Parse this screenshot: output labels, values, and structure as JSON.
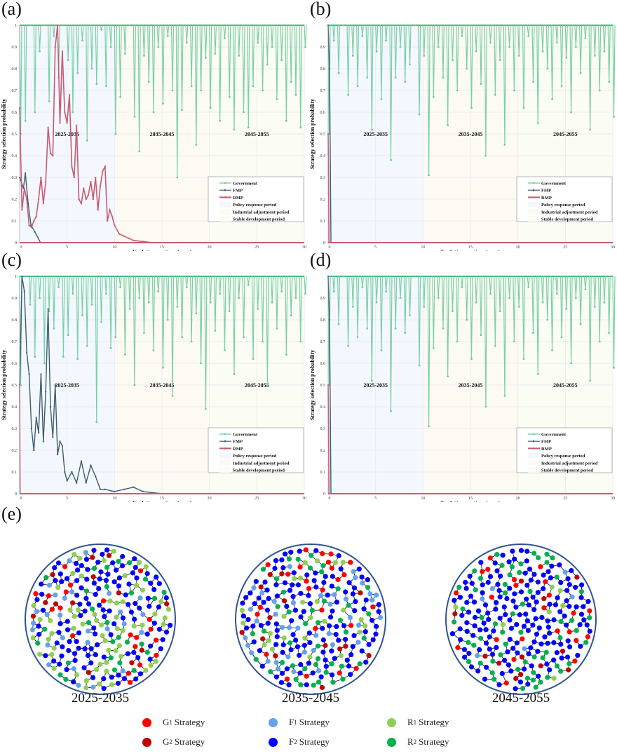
{
  "panels_labels": [
    "(a)",
    "(b)",
    "(c)",
    "(d)",
    "(e)"
  ],
  "colors": {
    "government": "#6ccb9c",
    "fmp": "#3e5c75",
    "rmp": "#c95a72",
    "period1": "#f4f8fe",
    "period2": "#fdfaf4",
    "period3": "#fbfcf4"
  },
  "chart_data": [
    {
      "type": "line",
      "panel": "(a)",
      "xlabel": "Evolutionary time (year)",
      "ylabel": "Strategy selection probability",
      "xlim": [
        0,
        30
      ],
      "ylim": [
        0,
        1
      ],
      "xticks": [
        "0",
        "5",
        "10",
        "15",
        "20",
        "25",
        "30"
      ],
      "yticks": [
        "0",
        "0.1",
        "0.2",
        "0.3",
        "0.4",
        "0.5",
        "0.6",
        "0.7",
        "0.8",
        "0.9",
        "1"
      ],
      "periods": [
        {
          "label": "2025-2035",
          "range": [
            0,
            10
          ],
          "name": "Policy response period"
        },
        {
          "label": "2035-2045",
          "range": [
            10,
            20
          ],
          "name": "Industrial adjustment period"
        },
        {
          "label": "2045-2055",
          "range": [
            20,
            30
          ],
          "name": "Stable development period"
        }
      ],
      "legend": [
        "Government",
        "FMP",
        "RMP",
        "Policy response period",
        "Industrial adjustment period",
        "Stable development period"
      ],
      "legend_position": "bottom-right",
      "grid": true,
      "series": [
        {
          "name": "Government",
          "x_step": 0.5,
          "values": [
            0.5,
            0.56,
            1,
            0.6,
            0.88,
            1,
            0.65,
            0.95,
            0.76,
            1,
            0.84,
            0.6,
            0.78,
            0.93,
            0.47,
            0.8,
            0.73,
            0.98,
            0.72,
            0.9,
            0.5,
            0.67,
            0.87,
            1,
            0.58,
            0.42,
            0.86,
            0.74,
            0.6,
            0.9,
            0.64,
            0.95,
            0.7,
            0.3,
            0.61,
            0.92,
            0.72,
            0.45,
            0.7,
            0.85,
            0.62,
            0.87,
            0.56,
            0.94,
            0.67,
            0.52,
            0.86,
            0.6,
            0.53,
            0.72,
            0.92,
            0.7,
            0.82,
            0.9,
            0.66,
            0.84,
            0.56,
            0.74,
            0.68,
            0.53,
            0.9
          ]
        },
        {
          "name": "FMP",
          "points": [
            [
              0,
              0.3
            ],
            [
              0.4,
              0.25
            ],
            [
              0.6,
              0.32
            ],
            [
              0.9,
              0.18
            ],
            [
              1.2,
              0.08
            ],
            [
              1.6,
              0.05
            ],
            [
              2.2,
              0
            ],
            [
              30,
              0
            ]
          ]
        },
        {
          "name": "RMP",
          "points": [
            [
              0,
              0.62
            ],
            [
              0.25,
              0.15
            ],
            [
              0.5,
              0.25
            ],
            [
              0.75,
              0.2
            ],
            [
              1,
              0.08
            ],
            [
              1.25,
              0.07
            ],
            [
              1.5,
              0.1
            ],
            [
              1.75,
              0.12
            ],
            [
              2,
              0.2
            ],
            [
              2.25,
              0.3
            ],
            [
              2.5,
              0.18
            ],
            [
              2.75,
              0.28
            ],
            [
              3,
              0.53
            ],
            [
              3.25,
              0.41
            ],
            [
              3.5,
              0.4
            ],
            [
              3.75,
              0.9
            ],
            [
              4,
              1.0
            ],
            [
              4.25,
              0.55
            ],
            [
              4.5,
              0.88
            ],
            [
              4.75,
              0.6
            ],
            [
              5,
              0.55
            ],
            [
              5.25,
              0.68
            ],
            [
              5.5,
              0.35
            ],
            [
              5.75,
              0.3
            ],
            [
              6,
              0.54
            ],
            [
              6.25,
              0.2
            ],
            [
              6.5,
              0.18
            ],
            [
              6.75,
              0.25
            ],
            [
              7,
              0.2
            ],
            [
              7.25,
              0.22
            ],
            [
              7.5,
              0.28
            ],
            [
              7.75,
              0.2
            ],
            [
              8,
              0.3
            ],
            [
              8.25,
              0.15
            ],
            [
              8.5,
              0.26
            ],
            [
              8.75,
              0.33
            ],
            [
              9,
              0.35
            ],
            [
              9.25,
              0.1
            ],
            [
              9.5,
              0.15
            ],
            [
              9.75,
              0.12
            ],
            [
              10,
              0.08
            ],
            [
              10.5,
              0.04
            ],
            [
              11,
              0.03
            ],
            [
              11.5,
              0.02
            ],
            [
              12,
              0.01
            ],
            [
              13,
              0.005
            ],
            [
              14,
              0
            ],
            [
              30,
              0
            ]
          ]
        }
      ]
    },
    {
      "type": "line",
      "panel": "(b)",
      "xlabel": "Evolutionary time (year)",
      "ylabel": "Strategy selection probability",
      "xlim": [
        0,
        30
      ],
      "ylim": [
        0,
        1
      ],
      "xticks": [
        "0",
        "5",
        "10",
        "15",
        "20",
        "25",
        "30"
      ],
      "yticks": [
        "0",
        "0.1",
        "0.2",
        "0.3",
        "0.4",
        "0.5",
        "0.6",
        "0.7",
        "0.8",
        "0.9",
        ""
      ],
      "periods": [
        {
          "label": "2025-2035",
          "range": [
            0,
            10
          ],
          "name": "Policy response period"
        },
        {
          "label": "2035-2045",
          "range": [
            10,
            20
          ],
          "name": "Industrial adjustment period"
        },
        {
          "label": "2045-2055",
          "range": [
            20,
            30
          ],
          "name": "Stable development period"
        }
      ],
      "legend": [
        "Government",
        "FMP",
        "RMP",
        "Policy response period",
        "Industrial adjustment period",
        "Stable development period"
      ],
      "legend_position": "bottom-right",
      "grid": true,
      "series": [
        {
          "name": "Government",
          "x_step": 0.5,
          "values": [
            0.5,
            0.93,
            0.78,
            1,
            0.68,
            0.86,
            0.72,
            0.95,
            0.76,
            0.52,
            0.88,
            0.66,
            0.93,
            0.38,
            0.76,
            0.9,
            0.74,
            0.82,
            1,
            0.59,
            0.86,
            0.31,
            0.67,
            0.9,
            0.76,
            0.54,
            0.84,
            0.7,
            0.95,
            0.8,
            0.62,
            0.88,
            0.73,
            0.4,
            0.92,
            0.68,
            0.84,
            0.45,
            0.9,
            0.7,
            0.86,
            0.62,
            0.95,
            0.74,
            0.55,
            0.88,
            0.8,
            0.66,
            0.92,
            0.72,
            0.85,
            0.6,
            0.9,
            0.78,
            0.94,
            0.52,
            0.86,
            0.7,
            0.88,
            0.74,
            0.58
          ]
        },
        {
          "name": "FMP",
          "points": [
            [
              0,
              1
            ],
            [
              0.15,
              0.8
            ],
            [
              0.3,
              0
            ],
            [
              30,
              0
            ]
          ]
        },
        {
          "name": "RMP",
          "points": [
            [
              0,
              0.5
            ],
            [
              0.1,
              0
            ],
            [
              30,
              0
            ]
          ]
        }
      ]
    },
    {
      "type": "line",
      "panel": "(c)",
      "xlabel": "Evolutionary time (year)",
      "ylabel": "Strategy selection probability",
      "xlim": [
        0,
        30
      ],
      "ylim": [
        0,
        1
      ],
      "xticks": [
        "0",
        "5",
        "10",
        "15",
        "20",
        "25",
        "30"
      ],
      "yticks": [
        "0",
        "0.1",
        "0.2",
        "0.3",
        "0.4",
        "0.5",
        "0.6",
        "0.7",
        "0.8",
        "0.9",
        "1"
      ],
      "periods": [
        {
          "label": "2025-2035",
          "range": [
            0,
            10
          ],
          "name": "Policy response period"
        },
        {
          "label": "2035-2045",
          "range": [
            10,
            20
          ],
          "name": "Industrial adjustment period"
        },
        {
          "label": "2045-2055",
          "range": [
            20,
            30
          ],
          "name": "Stable development period"
        }
      ],
      "legend": [
        "Government",
        "FMP",
        "RMP",
        "Policy response period",
        "Industrial adjustment period",
        "Stable development period"
      ],
      "legend_position": "bottom-right",
      "grid": true,
      "series": [
        {
          "name": "Government",
          "x_step": 0.5,
          "values": [
            0.5,
            1,
            0.87,
            0.63,
            0.9,
            0.6,
            0.84,
            0.76,
            0.95,
            0.63,
            0.73,
            0.92,
            0.62,
            0.82,
            0.68,
            0.87,
            0.33,
            0.79,
            0.92,
            0.67,
            0.72,
            0.95,
            0.64,
            0.85,
            0.5,
            0.9,
            0.74,
            0.88,
            0.66,
            0.93,
            0.58,
            0.8,
            0.45,
            0.86,
            0.72,
            0.95,
            0.7,
            0.83,
            0.6,
            0.39,
            0.88,
            0.75,
            0.92,
            0.66,
            0.84,
            0.55,
            0.9,
            0.72,
            0.96,
            0.62,
            0.85,
            0.7,
            0.5,
            0.88,
            0.76,
            0.93,
            0.64,
            0.82,
            0.9,
            0.7,
            0.92
          ]
        },
        {
          "name": "FMP",
          "points": [
            [
              0,
              0.5
            ],
            [
              0.1,
              0.67
            ],
            [
              0.25,
              1
            ],
            [
              0.5,
              0.93
            ],
            [
              0.75,
              0.65
            ],
            [
              1,
              0.55
            ],
            [
              1.25,
              0.3
            ],
            [
              1.5,
              0.2
            ],
            [
              1.75,
              0.35
            ],
            [
              2,
              0.28
            ],
            [
              2.25,
              0.55
            ],
            [
              2.5,
              0.24
            ],
            [
              2.75,
              0.47
            ],
            [
              3,
              0.85
            ],
            [
              3.25,
              0.4
            ],
            [
              3.5,
              0.26
            ],
            [
              3.75,
              0.5
            ],
            [
              4,
              0.18
            ],
            [
              4.25,
              0.24
            ],
            [
              4.5,
              0.22
            ],
            [
              4.75,
              0.1
            ],
            [
              5,
              0.06
            ],
            [
              5.5,
              0.1
            ],
            [
              6,
              0.05
            ],
            [
              6.5,
              0.15
            ],
            [
              7,
              0.05
            ],
            [
              7.5,
              0.13
            ],
            [
              8,
              0.08
            ],
            [
              8.5,
              0.02
            ],
            [
              9,
              0.02
            ],
            [
              10,
              0.01
            ],
            [
              11,
              0.02
            ],
            [
              12,
              0.03
            ],
            [
              13,
              0.01
            ],
            [
              15,
              0
            ],
            [
              30,
              0
            ]
          ]
        },
        {
          "name": "RMP",
          "points": [
            [
              0,
              0.5
            ],
            [
              0.05,
              0
            ],
            [
              30,
              0
            ]
          ]
        }
      ]
    },
    {
      "type": "line",
      "panel": "(d)",
      "xlabel": "Evolutionary time (year)",
      "ylabel": "Strategy selection probability",
      "xlim": [
        0,
        30
      ],
      "ylim": [
        0,
        1
      ],
      "xticks": [
        "0",
        "5",
        "10",
        "15",
        "20",
        "25",
        "30"
      ],
      "yticks": [
        "0",
        "0.1",
        "0.2",
        "0.3",
        "0.4",
        "0.5",
        "0.6",
        "0.7",
        "0.8",
        "0.9",
        ""
      ],
      "periods": [
        {
          "label": "2025-2035",
          "range": [
            0,
            10
          ],
          "name": "Policy response period"
        },
        {
          "label": "2035-2045",
          "range": [
            10,
            20
          ],
          "name": "Industrial adjustment period"
        },
        {
          "label": "2045-2055",
          "range": [
            20,
            30
          ],
          "name": "Stable development period"
        }
      ],
      "legend": [
        "Government",
        "FMP",
        "RMP",
        "Policy response period",
        "Industrial adjustment period",
        "Stable development period"
      ],
      "legend_position": "bottom-right",
      "grid": true,
      "series": [
        {
          "name": "Government",
          "x_step": 0.5,
          "values": [
            0.5,
            0.93,
            0.78,
            1,
            0.68,
            0.86,
            0.72,
            0.95,
            0.76,
            0.52,
            0.88,
            0.66,
            0.93,
            0.38,
            0.76,
            0.9,
            0.74,
            0.82,
            1,
            0.59,
            0.86,
            0.31,
            0.67,
            0.9,
            0.76,
            0.54,
            0.84,
            0.7,
            0.95,
            0.8,
            0.62,
            0.88,
            0.73,
            0.4,
            0.92,
            0.68,
            0.84,
            0.45,
            0.9,
            0.7,
            0.86,
            0.62,
            0.95,
            0.74,
            0.55,
            0.88,
            0.8,
            0.66,
            0.92,
            0.72,
            0.85,
            0.6,
            0.9,
            0.78,
            0.94,
            0.52,
            0.86,
            0.7,
            0.88,
            0.74,
            0.58
          ]
        },
        {
          "name": "FMP",
          "points": [
            [
              0,
              1
            ],
            [
              0.15,
              0.8
            ],
            [
              0.3,
              0
            ],
            [
              30,
              0
            ]
          ]
        },
        {
          "name": "RMP",
          "points": [
            [
              0,
              0.5
            ],
            [
              0.1,
              0
            ],
            [
              30,
              0
            ]
          ]
        }
      ]
    }
  ],
  "networks": [
    {
      "label": "2025-2035"
    },
    {
      "label": "2035-2045"
    },
    {
      "label": "2045-2055"
    }
  ],
  "network_legend": [
    {
      "letter": "G",
      "sub": "1",
      "text": "Strategy",
      "color": "#ff0000"
    },
    {
      "letter": "F",
      "sub": "1",
      "text": "Strategy",
      "color": "#64a2ee"
    },
    {
      "letter": "R",
      "sub": "1",
      "text": "Strategy",
      "color": "#8fcf55"
    },
    {
      "letter": "G",
      "sub": "2",
      "text": "Strategy",
      "color": "#c00000"
    },
    {
      "letter": "F",
      "sub": "2",
      "text": "Strategy",
      "color": "#0000ff"
    },
    {
      "letter": "R",
      "sub": "2",
      "text": "Strategy",
      "color": "#00b050"
    }
  ]
}
